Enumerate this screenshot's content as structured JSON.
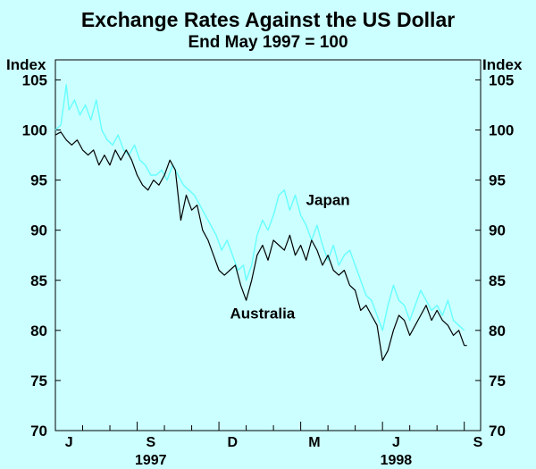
{
  "chart_data": {
    "type": "line",
    "title": "Exchange Rates Against the US Dollar",
    "subtitle": "End May 1997 = 100",
    "ylabel_left": "Index",
    "ylabel_right": "Index",
    "ylim": [
      70,
      107
    ],
    "yticks": [
      70,
      75,
      80,
      85,
      90,
      95,
      100,
      105
    ],
    "xlim": [
      0,
      15.6
    ],
    "x_unit": "months since end May 1997",
    "month_ticks": [
      {
        "label": "J",
        "pos": 0.5
      },
      {
        "label": "S",
        "pos": 3.5
      },
      {
        "label": "D",
        "pos": 6.5
      },
      {
        "label": "M",
        "pos": 9.5
      },
      {
        "label": "J",
        "pos": 12.5
      },
      {
        "label": "S",
        "pos": 15.5
      }
    ],
    "year_labels": [
      {
        "label": "1997",
        "pos": 3.5
      },
      {
        "label": "1998",
        "pos": 12.5
      }
    ],
    "series": [
      {
        "name": "Japan",
        "color": "#66ffff",
        "x": [
          0.0,
          0.2,
          0.3,
          0.4,
          0.5,
          0.7,
          0.9,
          1.1,
          1.3,
          1.5,
          1.7,
          1.9,
          2.1,
          2.3,
          2.5,
          2.7,
          2.9,
          3.1,
          3.3,
          3.5,
          3.7,
          3.9,
          4.1,
          4.3,
          4.5,
          4.7,
          4.9,
          5.1,
          5.3,
          5.5,
          5.7,
          5.9,
          6.1,
          6.3,
          6.5,
          6.7,
          6.9,
          7.0,
          7.2,
          7.4,
          7.6,
          7.8,
          8.0,
          8.2,
          8.4,
          8.6,
          8.8,
          9.0,
          9.2,
          9.4,
          9.6,
          9.8,
          10.0,
          10.2,
          10.4,
          10.6,
          10.8,
          11.0,
          11.2,
          11.4,
          11.6,
          11.8,
          12.0,
          12.2,
          12.4,
          12.6,
          12.8,
          13.0,
          13.2,
          13.4,
          13.6,
          13.8,
          14.0,
          14.2,
          14.4,
          14.6,
          14.8,
          15.0
        ],
        "values": [
          100,
          100.5,
          102.5,
          104.5,
          102.0,
          103.0,
          101.5,
          102.5,
          101.0,
          103.0,
          100.0,
          99.0,
          98.5,
          99.5,
          98.0,
          97.5,
          98.5,
          97.0,
          96.5,
          95.5,
          95.5,
          96.0,
          95.0,
          96.5,
          95.5,
          94.5,
          94.0,
          93.5,
          92.5,
          91.5,
          90.5,
          89.5,
          88.0,
          89.0,
          87.5,
          86.0,
          86.5,
          85.0,
          86.5,
          89.5,
          91.0,
          90.0,
          91.5,
          93.5,
          94.0,
          92.0,
          93.5,
          91.5,
          90.5,
          89.0,
          90.5,
          88.5,
          87.0,
          88.5,
          86.5,
          87.5,
          88.0,
          86.5,
          85.0,
          83.5,
          83.0,
          81.5,
          80.0,
          82.5,
          84.5,
          83.0,
          82.5,
          81.0,
          82.5,
          84.0,
          83.0,
          82.0,
          82.5,
          81.5,
          83.0,
          81.0,
          80.5,
          80.0
        ]
      },
      {
        "name": "Australia",
        "color": "#000000",
        "x": [
          0.0,
          0.2,
          0.4,
          0.6,
          0.8,
          1.0,
          1.2,
          1.4,
          1.6,
          1.8,
          2.0,
          2.2,
          2.4,
          2.6,
          2.8,
          3.0,
          3.2,
          3.4,
          3.6,
          3.8,
          4.0,
          4.2,
          4.4,
          4.6,
          4.8,
          5.0,
          5.2,
          5.4,
          5.6,
          5.8,
          6.0,
          6.2,
          6.4,
          6.6,
          6.8,
          7.0,
          7.2,
          7.4,
          7.6,
          7.8,
          8.0,
          8.2,
          8.4,
          8.6,
          8.8,
          9.0,
          9.2,
          9.4,
          9.6,
          9.8,
          10.0,
          10.2,
          10.4,
          10.6,
          10.8,
          11.0,
          11.2,
          11.4,
          11.6,
          11.8,
          12.0,
          12.2,
          12.4,
          12.6,
          12.8,
          13.0,
          13.2,
          13.4,
          13.6,
          13.8,
          14.0,
          14.2,
          14.4,
          14.6,
          14.8,
          15.0,
          15.1
        ],
        "values": [
          99.5,
          99.8,
          99.0,
          98.5,
          99.0,
          98.0,
          97.5,
          98.0,
          96.5,
          97.5,
          96.5,
          98.0,
          97.0,
          98.0,
          97.0,
          95.5,
          94.5,
          94.0,
          95.0,
          94.5,
          95.5,
          97.0,
          96.0,
          91.0,
          93.5,
          92.0,
          92.5,
          90.0,
          89.0,
          87.5,
          86.0,
          85.5,
          86.0,
          86.5,
          84.5,
          83.0,
          85.0,
          87.5,
          88.5,
          87.0,
          89.0,
          88.5,
          88.0,
          89.5,
          87.5,
          88.5,
          87.0,
          89.0,
          88.0,
          86.5,
          87.5,
          86.0,
          85.5,
          86.0,
          84.5,
          84.0,
          82.0,
          82.5,
          81.5,
          80.5,
          77.0,
          78.0,
          80.0,
          81.5,
          81.0,
          79.5,
          80.5,
          81.5,
          82.5,
          81.0,
          82.0,
          81.0,
          80.5,
          79.5,
          80.0,
          78.5,
          78.5
        ]
      }
    ],
    "annotations": [
      {
        "text": "Japan",
        "x": 10.0,
        "y": 92.5
      },
      {
        "text": "Australia",
        "x": 7.6,
        "y": 81.2
      }
    ]
  }
}
